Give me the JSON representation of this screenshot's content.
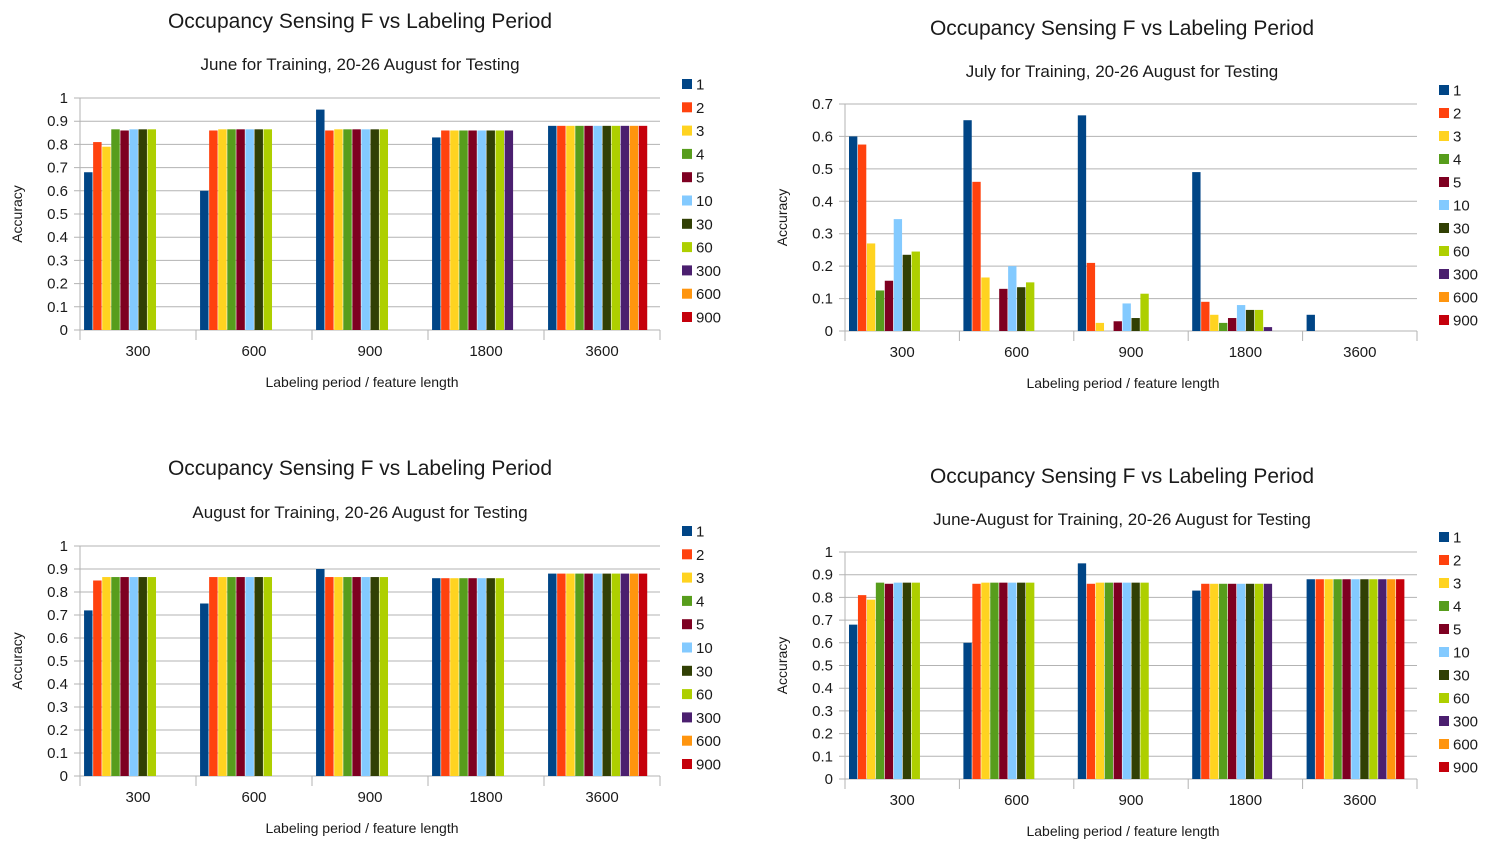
{
  "palette": [
    "#004586",
    "#ff420e",
    "#ffd320",
    "#579d1c",
    "#7e0021",
    "#83caff",
    "#314004",
    "#aecf00",
    "#4b1f6f",
    "#ff950e",
    "#c5000b"
  ],
  "chart_data": [
    {
      "type": "bar",
      "title": "Occupancy Sensing F vs Labeling Period",
      "subtitle": "June for Training, 20-26 August for Testing",
      "xlabel": "Labeling period / feature length",
      "ylabel": "Accuracy",
      "ylim": [
        0,
        1
      ],
      "yticks": [
        "0",
        "0.1",
        "0.2",
        "0.3",
        "0.4",
        "0.5",
        "0.6",
        "0.7",
        "0.8",
        "0.9",
        "1"
      ],
      "grid": true,
      "legend_position": "right",
      "categories": [
        "300",
        "600",
        "900",
        "1800",
        "3600"
      ],
      "series": [
        {
          "name": "1",
          "values": [
            0.68,
            0.6,
            0.95,
            0.83,
            0.88
          ]
        },
        {
          "name": "2",
          "values": [
            0.81,
            0.86,
            0.86,
            0.86,
            0.88
          ]
        },
        {
          "name": "3",
          "values": [
            0.79,
            0.865,
            0.865,
            0.86,
            0.88
          ]
        },
        {
          "name": "4",
          "values": [
            0.865,
            0.865,
            0.865,
            0.86,
            0.88
          ]
        },
        {
          "name": "5",
          "values": [
            0.86,
            0.865,
            0.865,
            0.86,
            0.88
          ]
        },
        {
          "name": "10",
          "values": [
            0.865,
            0.865,
            0.865,
            0.86,
            0.88
          ]
        },
        {
          "name": "30",
          "values": [
            0.865,
            0.865,
            0.865,
            0.86,
            0.88
          ]
        },
        {
          "name": "60",
          "values": [
            0.865,
            0.865,
            0.865,
            0.86,
            0.88
          ]
        },
        {
          "name": "300",
          "values": [
            null,
            null,
            null,
            0.86,
            0.88
          ]
        },
        {
          "name": "600",
          "values": [
            null,
            null,
            null,
            null,
            0.88
          ]
        },
        {
          "name": "900",
          "values": [
            null,
            null,
            null,
            null,
            0.88
          ]
        }
      ]
    },
    {
      "type": "bar",
      "title": "Occupancy Sensing F vs Labeling Period",
      "subtitle": "July for Training, 20-26 August for Testing",
      "xlabel": "Labeling period / feature length",
      "ylabel": "Accuracy",
      "ylim": [
        0,
        0.7
      ],
      "yticks": [
        "0",
        "0.1",
        "0.2",
        "0.3",
        "0.4",
        "0.5",
        "0.6",
        "0.7"
      ],
      "grid": true,
      "legend_position": "right",
      "categories": [
        "300",
        "600",
        "900",
        "1800",
        "3600"
      ],
      "series": [
        {
          "name": "1",
          "values": [
            0.6,
            0.65,
            0.665,
            0.49,
            0.05
          ]
        },
        {
          "name": "2",
          "values": [
            0.575,
            0.46,
            0.21,
            0.09,
            null
          ]
        },
        {
          "name": "3",
          "values": [
            0.27,
            0.165,
            0.025,
            0.05,
            null
          ]
        },
        {
          "name": "4",
          "values": [
            0.125,
            null,
            null,
            0.025,
            null
          ]
        },
        {
          "name": "5",
          "values": [
            0.155,
            0.13,
            0.03,
            0.04,
            null
          ]
        },
        {
          "name": "10",
          "values": [
            0.345,
            0.2,
            0.085,
            0.08,
            null
          ]
        },
        {
          "name": "30",
          "values": [
            0.235,
            0.135,
            0.04,
            0.065,
            null
          ]
        },
        {
          "name": "60",
          "values": [
            0.245,
            0.15,
            0.115,
            0.065,
            null
          ]
        },
        {
          "name": "300",
          "values": [
            null,
            null,
            null,
            0.012,
            null
          ]
        },
        {
          "name": "600",
          "values": [
            null,
            null,
            null,
            null,
            null
          ]
        },
        {
          "name": "900",
          "values": [
            null,
            null,
            null,
            null,
            null
          ]
        }
      ]
    },
    {
      "type": "bar",
      "title": "Occupancy Sensing F vs Labeling Period",
      "subtitle": "August for Training, 20-26 August for Testing",
      "xlabel": "Labeling period / feature length",
      "ylabel": "Accuracy",
      "ylim": [
        0,
        1
      ],
      "yticks": [
        "0",
        "0.1",
        "0.2",
        "0.3",
        "0.4",
        "0.5",
        "0.6",
        "0.7",
        "0.8",
        "0.9",
        "1"
      ],
      "grid": true,
      "legend_position": "right",
      "categories": [
        "300",
        "600",
        "900",
        "1800",
        "3600"
      ],
      "series": [
        {
          "name": "1",
          "values": [
            0.72,
            0.75,
            0.9,
            0.86,
            0.88
          ]
        },
        {
          "name": "2",
          "values": [
            0.85,
            0.865,
            0.865,
            0.86,
            0.88
          ]
        },
        {
          "name": "3",
          "values": [
            0.865,
            0.865,
            0.865,
            0.86,
            0.88
          ]
        },
        {
          "name": "4",
          "values": [
            0.865,
            0.865,
            0.865,
            0.86,
            0.88
          ]
        },
        {
          "name": "5",
          "values": [
            0.865,
            0.865,
            0.865,
            0.86,
            0.88
          ]
        },
        {
          "name": "10",
          "values": [
            0.865,
            0.865,
            0.865,
            0.86,
            0.88
          ]
        },
        {
          "name": "30",
          "values": [
            0.865,
            0.865,
            0.865,
            0.86,
            0.88
          ]
        },
        {
          "name": "60",
          "values": [
            0.865,
            0.865,
            0.865,
            0.86,
            0.88
          ]
        },
        {
          "name": "300",
          "values": [
            null,
            null,
            null,
            null,
            0.88
          ]
        },
        {
          "name": "600",
          "values": [
            null,
            null,
            null,
            null,
            0.88
          ]
        },
        {
          "name": "900",
          "values": [
            null,
            null,
            null,
            null,
            0.88
          ]
        }
      ]
    },
    {
      "type": "bar",
      "title": "Occupancy Sensing F vs Labeling Period",
      "subtitle": "June-August for Training, 20-26 August for Testing",
      "xlabel": "Labeling period / feature length",
      "ylabel": "Accuracy",
      "ylim": [
        0,
        1
      ],
      "yticks": [
        "0",
        "0.1",
        "0.2",
        "0.3",
        "0.4",
        "0.5",
        "0.6",
        "0.7",
        "0.8",
        "0.9",
        "1"
      ],
      "grid": true,
      "legend_position": "right",
      "categories": [
        "300",
        "600",
        "900",
        "1800",
        "3600"
      ],
      "series": [
        {
          "name": "1",
          "values": [
            0.68,
            0.6,
            0.95,
            0.83,
            0.88
          ]
        },
        {
          "name": "2",
          "values": [
            0.81,
            0.86,
            0.86,
            0.86,
            0.88
          ]
        },
        {
          "name": "3",
          "values": [
            0.79,
            0.865,
            0.865,
            0.86,
            0.88
          ]
        },
        {
          "name": "4",
          "values": [
            0.865,
            0.865,
            0.865,
            0.86,
            0.88
          ]
        },
        {
          "name": "5",
          "values": [
            0.86,
            0.865,
            0.865,
            0.86,
            0.88
          ]
        },
        {
          "name": "10",
          "values": [
            0.865,
            0.865,
            0.865,
            0.86,
            0.88
          ]
        },
        {
          "name": "30",
          "values": [
            0.865,
            0.865,
            0.865,
            0.86,
            0.88
          ]
        },
        {
          "name": "60",
          "values": [
            0.865,
            0.865,
            0.865,
            0.86,
            0.88
          ]
        },
        {
          "name": "300",
          "values": [
            null,
            null,
            null,
            0.86,
            0.88
          ]
        },
        {
          "name": "600",
          "values": [
            null,
            null,
            null,
            null,
            0.88
          ]
        },
        {
          "name": "900",
          "values": [
            null,
            null,
            null,
            null,
            0.88
          ]
        }
      ]
    }
  ]
}
